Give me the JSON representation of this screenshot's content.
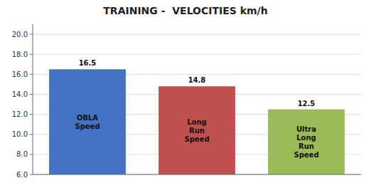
{
  "chart_data": {
    "type": "bar",
    "title": "TRAINING -  VELOCITIES km/h",
    "categories": [
      "OBLA\nSpeed",
      "Long\nRun\nSpeed",
      "Ultra\nLong\nRun\nSpeed"
    ],
    "values": [
      16.5,
      14.8,
      12.5
    ],
    "colors": [
      "#4472C4",
      "#C0504D",
      "#9BBB59"
    ],
    "ylim": [
      6.0,
      21.0
    ],
    "yticks": [
      {
        "value": 6.0,
        "label": "6.0"
      },
      {
        "value": 8.0,
        "label": "8.0"
      },
      {
        "value": 10.0,
        "label": "10.0"
      },
      {
        "value": 12.0,
        "label": "12.0"
      },
      {
        "value": 14.0,
        "label": "14.0"
      },
      {
        "value": 16.0,
        "label": "16.0"
      },
      {
        "value": 18.0,
        "label": "18.0"
      },
      {
        "value": 20.0,
        "label": "20.0"
      }
    ],
    "grid": true,
    "data_labels": true
  }
}
